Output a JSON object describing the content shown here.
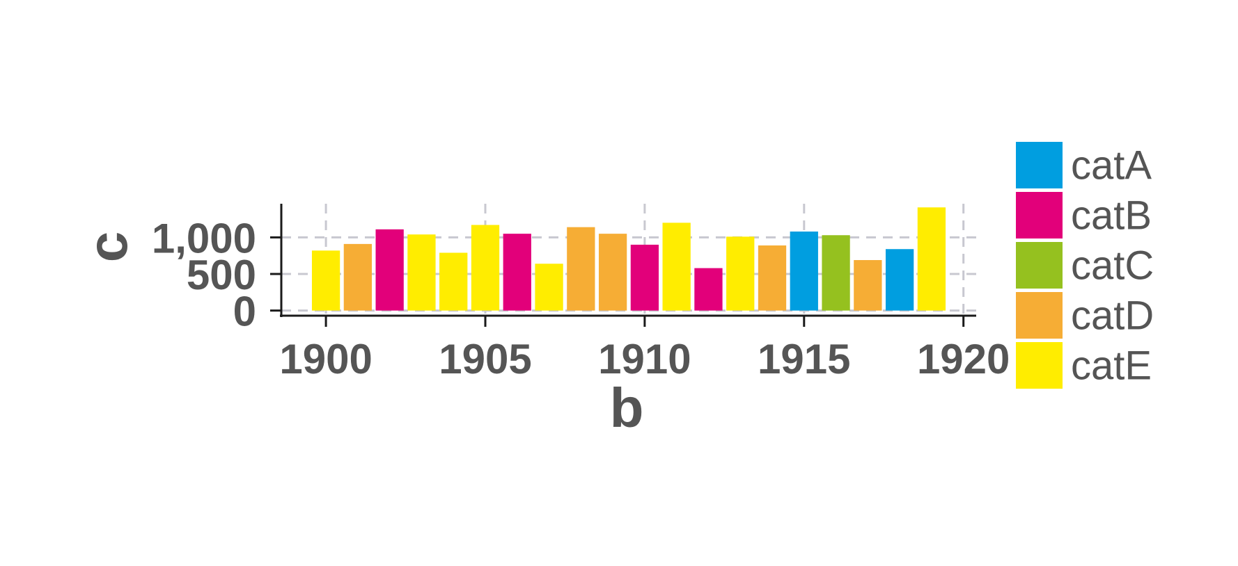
{
  "chart_data": {
    "type": "bar",
    "xlabel": "b",
    "ylabel": "c",
    "x_ticks": [
      "1900",
      "1905",
      "1910",
      "1915",
      "1920"
    ],
    "y_ticks": [
      "0",
      "500",
      "1,000"
    ],
    "xlim": [
      1898.6,
      1920.4
    ],
    "ylim": [
      -70,
      1460
    ],
    "grid": true,
    "legend_position": "right",
    "categories": [
      "catA",
      "catB",
      "catC",
      "catD",
      "catE"
    ],
    "colors": {
      "catA": "#009ee0",
      "catB": "#e2007a",
      "catC": "#95c11f",
      "catD": "#f6ad35",
      "catE": "#ffed00"
    },
    "points": [
      {
        "x": 1900,
        "y": 820,
        "category": "catE"
      },
      {
        "x": 1901,
        "y": 910,
        "category": "catD"
      },
      {
        "x": 1902,
        "y": 1110,
        "category": "catB"
      },
      {
        "x": 1903,
        "y": 1040,
        "category": "catE"
      },
      {
        "x": 1904,
        "y": 790,
        "category": "catE"
      },
      {
        "x": 1905,
        "y": 1170,
        "category": "catE"
      },
      {
        "x": 1906,
        "y": 1050,
        "category": "catB"
      },
      {
        "x": 1907,
        "y": 640,
        "category": "catE"
      },
      {
        "x": 1908,
        "y": 1140,
        "category": "catD"
      },
      {
        "x": 1909,
        "y": 1050,
        "category": "catD"
      },
      {
        "x": 1910,
        "y": 900,
        "category": "catB"
      },
      {
        "x": 1911,
        "y": 1200,
        "category": "catE"
      },
      {
        "x": 1912,
        "y": 580,
        "category": "catB"
      },
      {
        "x": 1913,
        "y": 1010,
        "category": "catE"
      },
      {
        "x": 1914,
        "y": 890,
        "category": "catD"
      },
      {
        "x": 1915,
        "y": 1080,
        "category": "catA"
      },
      {
        "x": 1916,
        "y": 1030,
        "category": "catC"
      },
      {
        "x": 1917,
        "y": 690,
        "category": "catD"
      },
      {
        "x": 1918,
        "y": 840,
        "category": "catA"
      },
      {
        "x": 1919,
        "y": 1410,
        "category": "catE"
      }
    ]
  }
}
